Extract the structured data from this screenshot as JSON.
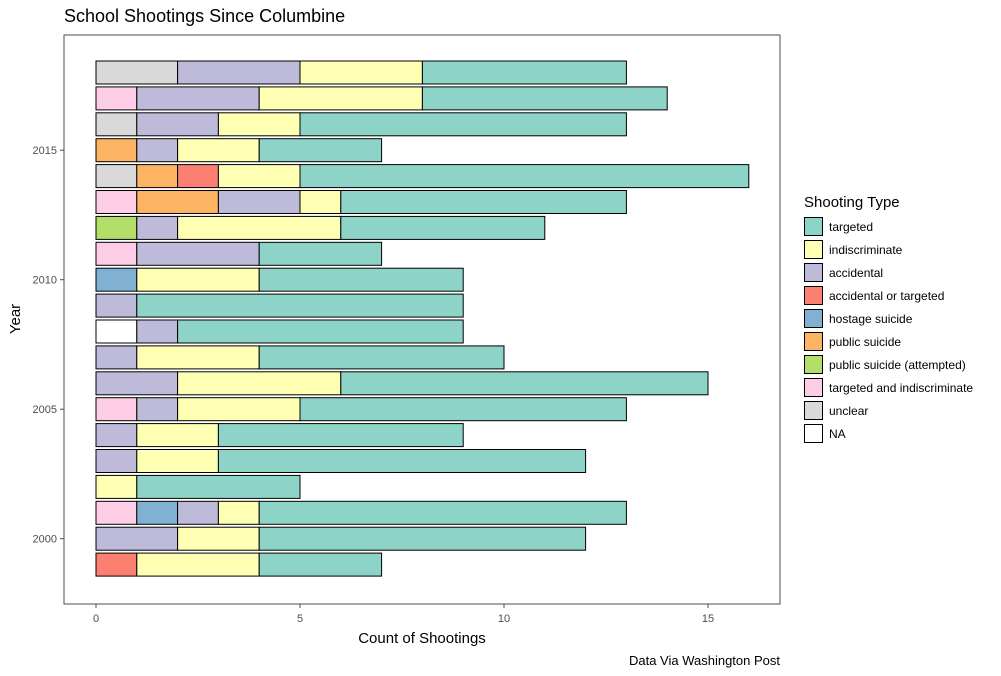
{
  "chart_data": {
    "type": "bar",
    "orientation": "horizontal",
    "stacked": true,
    "title": "School Shootings Since Columbine",
    "xlabel": "Count of Shootings",
    "ylabel": "Year",
    "caption": "Data Via Washington Post",
    "xlim": [
      0,
      16
    ],
    "x_ticks": [
      0,
      5,
      10,
      15
    ],
    "y_ticks": [
      2000,
      2005,
      2010,
      2015
    ],
    "grid": false,
    "legend": {
      "title": "Shooting Type",
      "position": "right",
      "entries": [
        {
          "name": "targeted",
          "color": "#8dd3c7"
        },
        {
          "name": "indiscriminate",
          "color": "#ffffb3"
        },
        {
          "name": "accidental",
          "color": "#bebada"
        },
        {
          "name": "accidental or targeted",
          "color": "#fb8072"
        },
        {
          "name": "hostage suicide",
          "color": "#80b1d3"
        },
        {
          "name": "public suicide",
          "color": "#fdb462"
        },
        {
          "name": "public suicide (attempted)",
          "color": "#b3de69"
        },
        {
          "name": "targeted and indiscriminate",
          "color": "#fccde5"
        },
        {
          "name": "unclear",
          "color": "#d9d9d9"
        },
        {
          "name": "NA",
          "color": "#ffffff"
        }
      ]
    },
    "stack_order": [
      "NA",
      "unclear",
      "targeted and indiscriminate",
      "public suicide (attempted)",
      "public suicide",
      "hostage suicide",
      "accidental or targeted",
      "accidental",
      "indiscriminate",
      "targeted"
    ],
    "years": [
      {
        "year": 1999,
        "segments": {
          "accidental or targeted": 1,
          "indiscriminate": 3,
          "targeted": 3
        }
      },
      {
        "year": 2000,
        "segments": {
          "accidental": 2,
          "indiscriminate": 2,
          "targeted": 8
        }
      },
      {
        "year": 2001,
        "segments": {
          "targeted and indiscriminate": 1,
          "hostage suicide": 1,
          "accidental": 1,
          "indiscriminate": 1,
          "targeted": 9
        }
      },
      {
        "year": 2002,
        "segments": {
          "indiscriminate": 1,
          "targeted": 4
        }
      },
      {
        "year": 2003,
        "segments": {
          "accidental": 1,
          "indiscriminate": 2,
          "targeted": 9
        }
      },
      {
        "year": 2004,
        "segments": {
          "accidental": 1,
          "indiscriminate": 2,
          "targeted": 6
        }
      },
      {
        "year": 2005,
        "segments": {
          "targeted and indiscriminate": 1,
          "accidental": 1,
          "indiscriminate": 3,
          "targeted": 8
        }
      },
      {
        "year": 2006,
        "segments": {
          "accidental": 2,
          "indiscriminate": 4,
          "targeted": 9
        }
      },
      {
        "year": 2007,
        "segments": {
          "accidental": 1,
          "indiscriminate": 3,
          "targeted": 6
        }
      },
      {
        "year": 2008,
        "segments": {
          "NA": 1,
          "accidental": 1,
          "targeted": 7
        }
      },
      {
        "year": 2009,
        "segments": {
          "accidental": 1,
          "targeted": 8
        }
      },
      {
        "year": 2010,
        "segments": {
          "hostage suicide": 1,
          "indiscriminate": 3,
          "targeted": 5
        }
      },
      {
        "year": 2011,
        "segments": {
          "targeted and indiscriminate": 1,
          "accidental": 3,
          "targeted": 3
        }
      },
      {
        "year": 2012,
        "segments": {
          "public suicide (attempted)": 1,
          "accidental": 1,
          "indiscriminate": 4,
          "targeted": 5
        }
      },
      {
        "year": 2013,
        "segments": {
          "targeted and indiscriminate": 1,
          "public suicide": 2,
          "accidental": 2,
          "indiscriminate": 1,
          "targeted": 7
        }
      },
      {
        "year": 2014,
        "segments": {
          "unclear": 1,
          "public suicide": 1,
          "accidental or targeted": 1,
          "indiscriminate": 2,
          "targeted": 11
        }
      },
      {
        "year": 2015,
        "segments": {
          "public suicide": 1,
          "accidental": 1,
          "indiscriminate": 2,
          "targeted": 3
        }
      },
      {
        "year": 2016,
        "segments": {
          "unclear": 1,
          "accidental": 2,
          "indiscriminate": 2,
          "targeted": 8
        }
      },
      {
        "year": 2017,
        "segments": {
          "targeted and indiscriminate": 1,
          "accidental": 3,
          "indiscriminate": 4,
          "targeted": 6
        }
      },
      {
        "year": 2018,
        "segments": {
          "unclear": 2,
          "accidental": 3,
          "indiscriminate": 3,
          "targeted": 5
        }
      }
    ]
  }
}
